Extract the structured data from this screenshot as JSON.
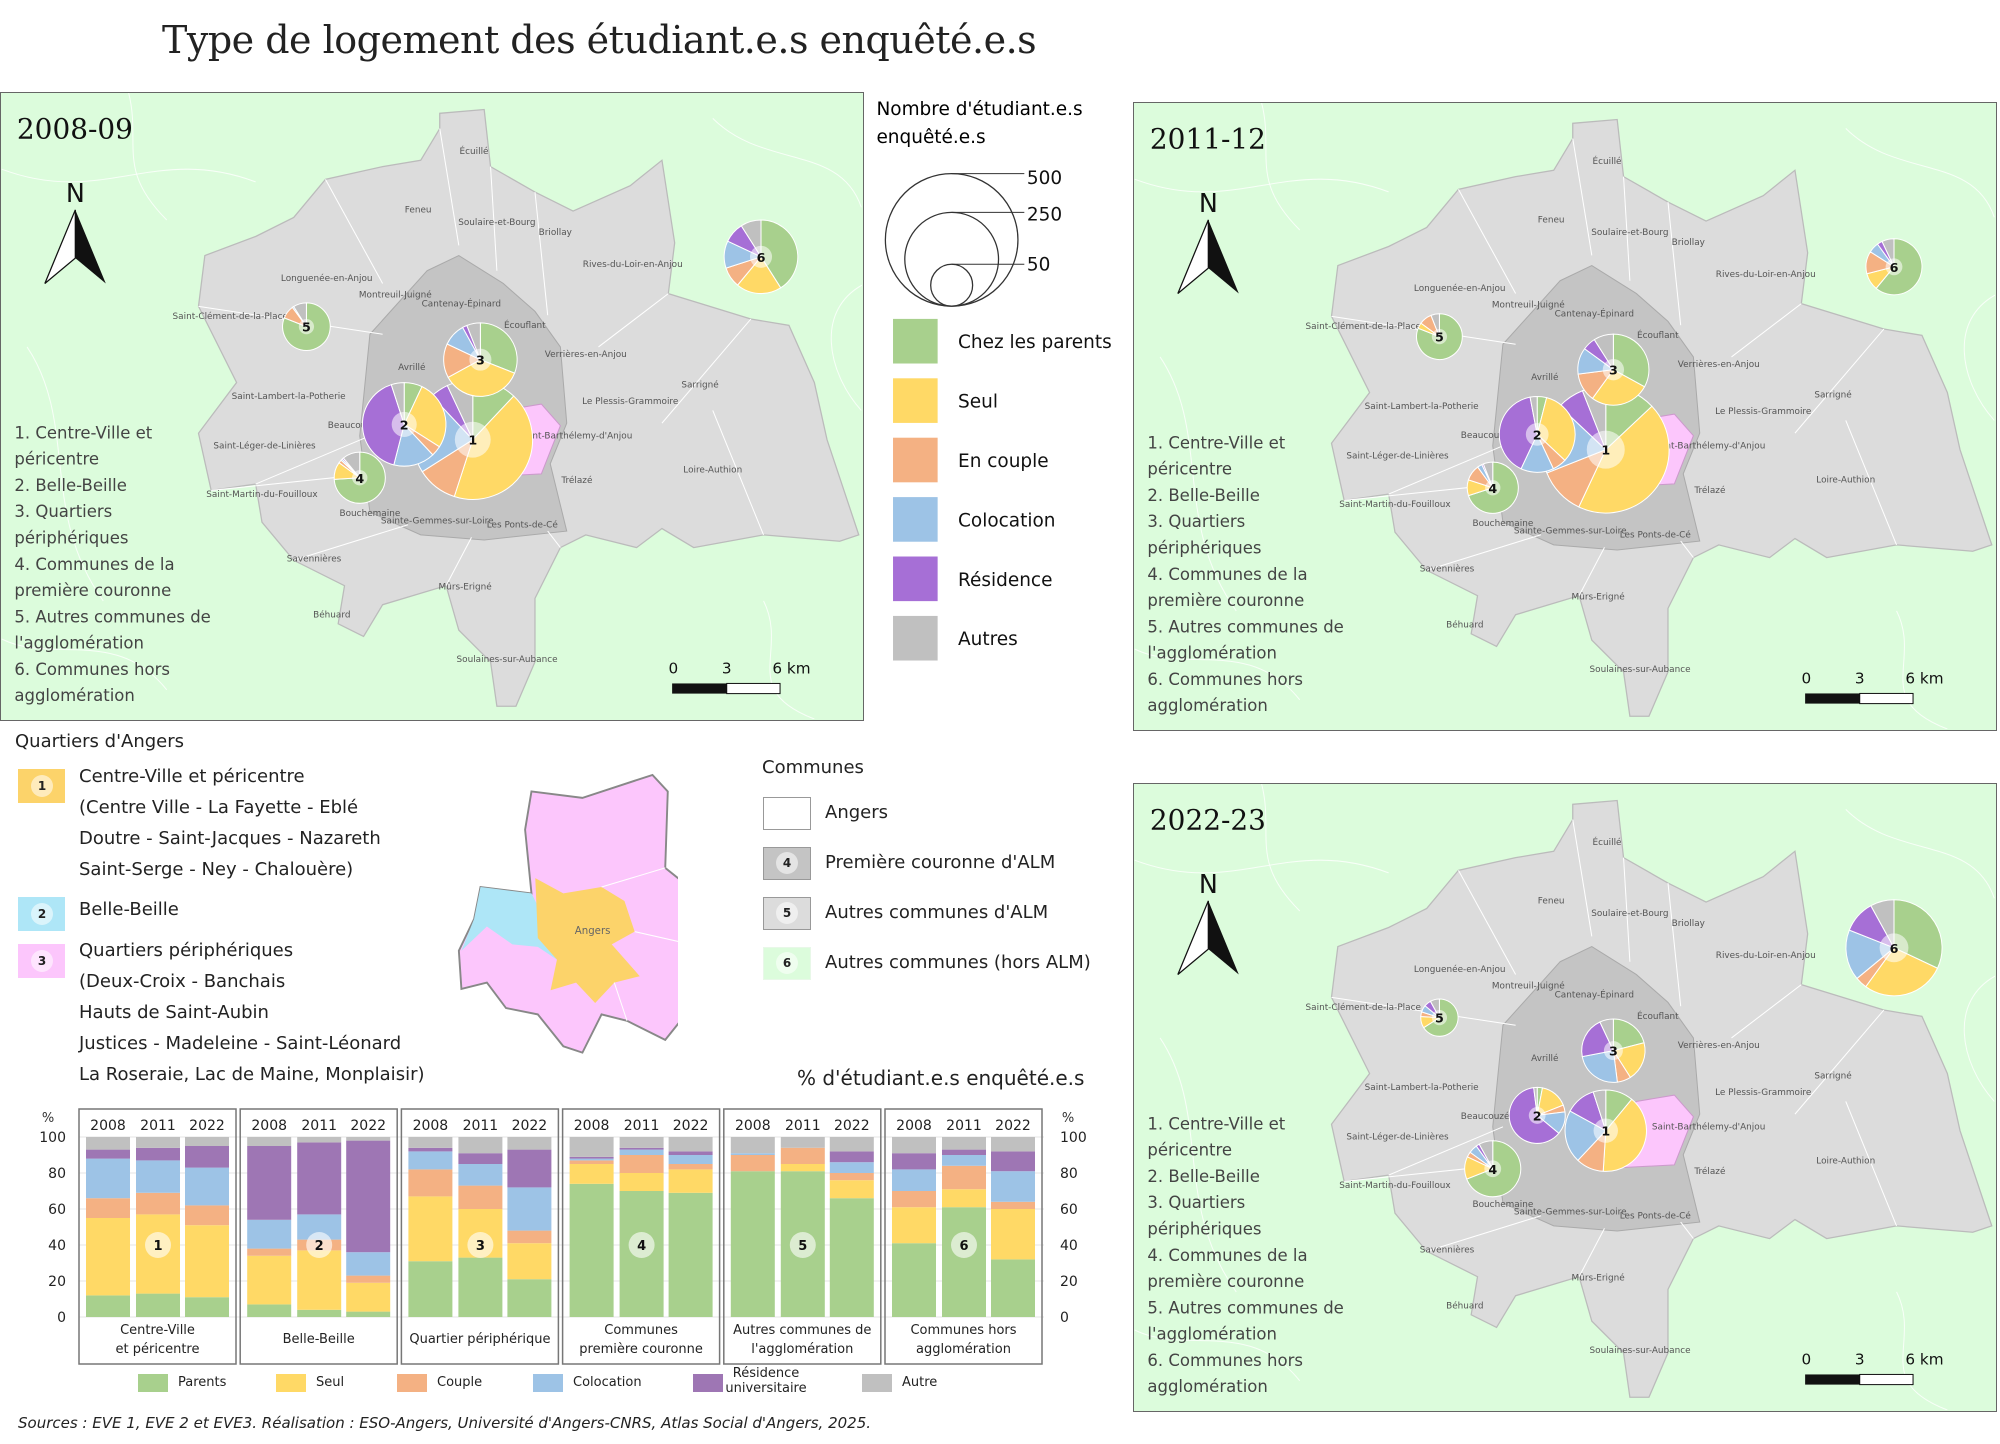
{
  "title": "Type de logement des étudiant.e.s enquêté.e.s",
  "colors": {
    "parents": "#a8d08d",
    "seul": "#ffd966",
    "couple": "#f4b183",
    "colocation": "#9dc3e6",
    "residence_map": "#a66fd6",
    "residence_bar": "#9e76b4",
    "autres": "#c0c0c0",
    "map_background": "#dcfcdc",
    "commune_other_alm": "#dcdcdc",
    "commune_first_ring": "#c4c4c4",
    "angers_centre": "#fcd36a",
    "angers_belle_beille": "#aee6f7",
    "angers_peripheral": "#fcc6fc"
  },
  "size_legend": {
    "title_line1": "Nombre d'étudiant.e.s",
    "title_line2": "enquêté.e.s",
    "values": [
      "500",
      "250",
      "50"
    ]
  },
  "categories": [
    {
      "key": "parents",
      "label": "Chez les parents",
      "bar_label": "Parents"
    },
    {
      "key": "seul",
      "label": "Seul",
      "bar_label": "Seul"
    },
    {
      "key": "couple",
      "label": "En couple",
      "bar_label": "Couple"
    },
    {
      "key": "colocation",
      "label": "Colocation",
      "bar_label": "Colocation"
    },
    {
      "key": "residence",
      "label": "Résidence",
      "bar_label": "Résidence universitaire"
    },
    {
      "key": "autres",
      "label": "Autres",
      "bar_label": "Autre"
    }
  ],
  "zone_list": [
    "1. Centre-Ville et",
    "péricentre",
    "2. Belle-Beille",
    "3. Quartiers",
    "périphériques",
    "4. Communes de la",
    "première couronne",
    "5. Autres communes de",
    "l'agglomération",
    "6. Communes hors",
    "agglomération"
  ],
  "north_label": "N",
  "scale_bar": {
    "labels": [
      "0",
      "3",
      "6 km"
    ]
  },
  "communes": [
    "Écuillé",
    "Feneu",
    "Soulaire-et-Bourg",
    "Briollay",
    "Rives-du-Loir-en-Anjou",
    "Longuenée-en-Anjou",
    "Montreuil-Juigné",
    "Cantenay-Épinard",
    "Saint-Clément-de-la-Place",
    "Écouflant",
    "Verrières-en-Anjou",
    "Avrillé",
    "Sarrigné",
    "Saint-Lambert-la-Potherie",
    "Le Plessis-Grammoire",
    "Beaucouzé",
    "Saint-Barthélemy-d'Anjou",
    "Saint-Léger-de-Linières",
    "Loire-Authion",
    "Saint-Martin-du-Fouilloux",
    "Trélazé",
    "Bouchemaine",
    "Sainte-Gemmes-sur-Loire",
    "Les Ponts-de-Cé",
    "Savennières",
    "Mûrs-Erigné",
    "Béhuard",
    "Soulaines-sur-Aubance"
  ],
  "maps": [
    {
      "label": "2008-09",
      "year_index": 0,
      "pie_counts": [
        410,
        200,
        155,
        75,
        65,
        155
      ]
    },
    {
      "label": "2011-12",
      "year_index": 1,
      "pie_counts": [
        460,
        165,
        145,
        75,
        60,
        90
      ]
    },
    {
      "label": "2022-23",
      "year_index": 2,
      "pie_counts": [
        190,
        90,
        115,
        90,
        40,
        265
      ]
    }
  ],
  "quartiers_legend": {
    "title": "Quartiers d'Angers",
    "items": [
      {
        "num": "1",
        "lines": [
          "Centre-Ville et péricentre",
          "(Centre Ville - La Fayette - Eblé",
          "Doutre - Saint-Jacques - Nazareth",
          "Saint-Serge - Ney - Chalouère)"
        ]
      },
      {
        "num": "2",
        "lines": [
          "Belle-Beille"
        ]
      },
      {
        "num": "3",
        "lines": [
          "Quartiers périphériques",
          "(Deux-Croix - Banchais",
          "Hauts de Saint-Aubin",
          "Justices - Madeleine - Saint-Léonard",
          "La Roseraie, Lac de Maine, Monplaisir)"
        ]
      }
    ],
    "mini_map_label": "Angers"
  },
  "communes_legend": {
    "title": "Communes",
    "items": [
      {
        "num": "",
        "label": "Angers"
      },
      {
        "num": "4",
        "label": "Première couronne d'ALM"
      },
      {
        "num": "5",
        "label": "Autres communes d'ALM"
      },
      {
        "num": "6",
        "label": "Autres communes (hors ALM)"
      }
    ]
  },
  "chart_data": {
    "type": "bar",
    "stacked": true,
    "title": "% d'étudiant.e.s enquêté.e.s",
    "ylabel": "%",
    "ylim": [
      0,
      100
    ],
    "yticks": [
      0,
      20,
      40,
      60,
      80,
      100
    ],
    "years": [
      "2008",
      "2011",
      "2022"
    ],
    "series_names": [
      "Parents",
      "Seul",
      "Couple",
      "Colocation",
      "Résidence universitaire",
      "Autre"
    ],
    "groups": [
      {
        "num": "1",
        "name": [
          "Centre-Ville",
          "et péricentre"
        ],
        "values": [
          [
            12,
            43,
            11,
            22,
            5,
            7
          ],
          [
            13,
            44,
            12,
            18,
            7,
            6
          ],
          [
            11,
            40,
            11,
            21,
            12,
            5
          ]
        ]
      },
      {
        "num": "2",
        "name": [
          "Belle-Beille"
        ],
        "values": [
          [
            7,
            27,
            4,
            16,
            41,
            5
          ],
          [
            4,
            33,
            6,
            14,
            40,
            3
          ],
          [
            3,
            16,
            4,
            13,
            62,
            2
          ]
        ]
      },
      {
        "num": "3",
        "name": [
          "Quartier périphérique"
        ],
        "values": [
          [
            31,
            36,
            15,
            10,
            2,
            6
          ],
          [
            33,
            27,
            13,
            12,
            6,
            9
          ],
          [
            21,
            20,
            7,
            24,
            21,
            7
          ]
        ]
      },
      {
        "num": "4",
        "name": [
          "Communes",
          "première couronne"
        ],
        "values": [
          [
            74,
            11,
            2,
            1,
            1,
            11
          ],
          [
            70,
            10,
            10,
            3,
            1,
            6
          ],
          [
            69,
            13,
            3,
            5,
            2,
            8
          ]
        ]
      },
      {
        "num": "5",
        "name": [
          "Autres communes de",
          "l'agglomération"
        ],
        "values": [
          [
            81,
            0,
            9,
            1,
            0,
            9
          ],
          [
            81,
            4,
            9,
            0,
            0,
            6
          ],
          [
            66,
            10,
            4,
            6,
            6,
            8
          ]
        ]
      },
      {
        "num": "6",
        "name": [
          "Communes hors",
          "agglomération"
        ],
        "values": [
          [
            41,
            20,
            9,
            12,
            9,
            9
          ],
          [
            61,
            10,
            13,
            6,
            3,
            7
          ],
          [
            32,
            28,
            4,
            17,
            11,
            8
          ]
        ]
      }
    ]
  },
  "sources": "Sources : EVE 1, EVE 2 et EVE3. Réalisation : ESO-Angers, Université d'Angers-CNRS, Atlas Social d'Angers, 2025."
}
